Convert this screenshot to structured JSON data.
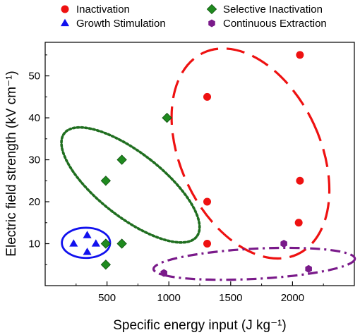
{
  "chart_data": {
    "type": "scatter",
    "xlabel": "Specific energy input (J kg⁻¹)",
    "ylabel": "Electric field strength (kV cm⁻¹)",
    "xlim": [
      0,
      2500
    ],
    "ylim": [
      0,
      58
    ],
    "x_ticks": [
      500,
      1000,
      1500,
      2000
    ],
    "y_ticks": [
      10,
      20,
      30,
      40,
      50
    ],
    "grid": false,
    "legend_position": "top",
    "series": [
      {
        "name": "Inactivation",
        "marker": "circle",
        "color": "#ee1111",
        "points": [
          [
            1310,
            45
          ],
          [
            2060,
            55
          ],
          [
            1310,
            20
          ],
          [
            2060,
            25
          ],
          [
            2050,
            15
          ],
          [
            1310,
            10
          ]
        ]
      },
      {
        "name": "Growth Stimulation",
        "marker": "triangle",
        "color": "#1111ee",
        "points": [
          [
            340,
            12
          ],
          [
            230,
            10
          ],
          [
            410,
            10
          ],
          [
            340,
            8
          ]
        ]
      },
      {
        "name": "Selective Inactivation",
        "marker": "diamond",
        "color": "#1f8a1f",
        "points": [
          [
            985,
            40
          ],
          [
            620,
            30
          ],
          [
            490,
            25
          ],
          [
            490,
            10
          ],
          [
            620,
            10
          ],
          [
            490,
            5
          ]
        ]
      },
      {
        "name": "Continuous Extraction",
        "marker": "hexagon",
        "color": "#7a1a8a",
        "points": [
          [
            960,
            3
          ],
          [
            1930,
            10
          ],
          [
            2130,
            4
          ]
        ]
      }
    ],
    "annotations": [
      {
        "shape": "ellipse",
        "group": "Inactivation",
        "style": "long-dash",
        "color": "#ee1111",
        "cx": 1660,
        "cy": 31.5,
        "rx": 565,
        "ry": 26.5,
        "angle_deg": 25
      },
      {
        "shape": "ellipse",
        "group": "Growth Stimulation",
        "style": "solid",
        "color": "#1111ee",
        "cx": 330,
        "cy": 10.2,
        "rx": 195,
        "ry": 3.6,
        "angle_deg": 0
      },
      {
        "shape": "ellipse",
        "group": "Selective Inactivation",
        "style": "dotted",
        "color": "#1f6e1f",
        "cx": 690,
        "cy": 24,
        "rx": 260,
        "ry": 20,
        "angle_deg": 52
      },
      {
        "shape": "ellipse",
        "group": "Continuous Extraction",
        "style": "dash-dot",
        "color": "#7a1a8a",
        "cx": 1690,
        "cy": 5.2,
        "rx": 815,
        "ry": 3.6,
        "angle_deg": 3
      }
    ]
  }
}
